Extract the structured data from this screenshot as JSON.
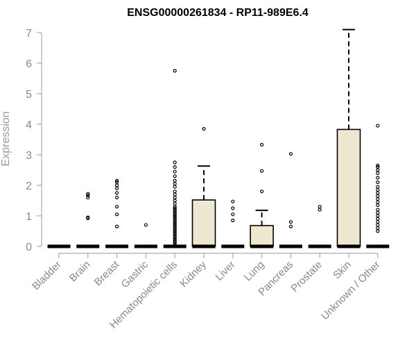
{
  "chart_data": {
    "type": "boxplot",
    "title": "ENSG00000261834 - RP11-989E6.4",
    "ylabel": "Expression",
    "xlabel": "",
    "ylim": [
      0,
      7
    ],
    "yticks": [
      "0",
      "1",
      "2",
      "3",
      "4",
      "5",
      "6",
      "7"
    ],
    "grid": false,
    "legend": "none",
    "box_fill": "#EEE8D0",
    "categories": [
      "Bladder",
      "Brain",
      "Breast",
      "Gastric",
      "Hematopoietic cells",
      "Kidney",
      "Liver",
      "Lung",
      "Pancreas",
      "Prostate",
      "Skin",
      "Unknown / Other"
    ],
    "boxes": [
      {
        "q1": 0,
        "median": 0,
        "q3": 0,
        "whisker_high": 0,
        "outliers": []
      },
      {
        "q1": 0,
        "median": 0,
        "q3": 0,
        "whisker_high": 0,
        "outliers": [
          0.92,
          0.95,
          1.6,
          1.67,
          1.72
        ]
      },
      {
        "q1": 0,
        "median": 0,
        "q3": 0,
        "whisker_high": 0,
        "outliers": [
          0.65,
          1.05,
          1.3,
          1.6,
          1.75,
          1.9,
          2.0,
          2.1,
          2.15
        ]
      },
      {
        "q1": 0,
        "median": 0,
        "q3": 0,
        "whisker_high": 0,
        "outliers": [
          0.7
        ]
      },
      {
        "q1": 0,
        "median": 0,
        "q3": 0,
        "whisker_high": 0,
        "outliers": [
          0.05,
          0.1,
          0.15,
          0.2,
          0.25,
          0.3,
          0.35,
          0.4,
          0.45,
          0.5,
          0.55,
          0.6,
          0.65,
          0.7,
          0.75,
          0.8,
          0.85,
          0.9,
          0.95,
          1.0,
          1.05,
          1.1,
          1.15,
          1.2,
          1.25,
          1.3,
          1.4,
          1.5,
          1.6,
          1.7,
          1.8,
          1.95,
          2.05,
          2.15,
          2.3,
          2.45,
          2.6,
          2.75,
          5.75
        ]
      },
      {
        "q1": 0,
        "median": 0,
        "q3": 1.52,
        "whisker_high": 2.63,
        "outliers": [
          3.85
        ]
      },
      {
        "q1": 0,
        "median": 0,
        "q3": 0,
        "whisker_high": 0,
        "outliers": [
          0.85,
          1.05,
          1.25,
          1.47
        ]
      },
      {
        "q1": 0,
        "median": 0,
        "q3": 0.68,
        "whisker_high": 1.18,
        "outliers": [
          1.8,
          2.47,
          3.33
        ]
      },
      {
        "q1": 0,
        "median": 0,
        "q3": 0,
        "whisker_high": 0,
        "outliers": [
          0.65,
          0.8,
          3.03
        ]
      },
      {
        "q1": 0,
        "median": 0,
        "q3": 0,
        "whisker_high": 0,
        "outliers": [
          1.2,
          1.3
        ]
      },
      {
        "q1": 0,
        "median": 0,
        "q3": 3.83,
        "whisker_high": 7.1,
        "outliers": []
      },
      {
        "q1": 0,
        "median": 0,
        "q3": 0,
        "whisker_high": 0,
        "outliers": [
          0.5,
          0.6,
          0.7,
          0.8,
          0.9,
          1.0,
          1.1,
          1.2,
          1.35,
          1.45,
          1.55,
          1.65,
          1.75,
          1.85,
          1.95,
          2.1,
          2.25,
          2.4,
          2.5,
          2.6,
          2.65,
          3.95
        ]
      }
    ]
  }
}
